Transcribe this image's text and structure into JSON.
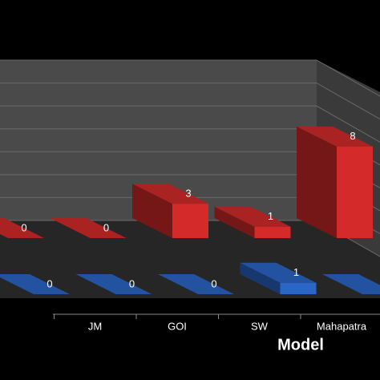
{
  "chart_data": {
    "type": "bar3d",
    "x_label": "Model",
    "categories": [
      null,
      "JM",
      "GOI",
      "SW",
      "Mahapatra"
    ],
    "series": [
      {
        "color": "#d42a2a",
        "values": [
          0,
          0,
          3,
          1,
          8
        ]
      },
      {
        "color": "#2a66c8",
        "values": [
          0,
          0,
          0,
          1,
          0
        ],
        "value_labels": [
          "0",
          "0",
          "0",
          "1",
          null
        ]
      }
    ],
    "ylim": [
      0,
      14
    ],
    "yticks": [
      0,
      2,
      4,
      6,
      8,
      10,
      12,
      14
    ],
    "grid": true,
    "show_ytick_labels": false
  }
}
